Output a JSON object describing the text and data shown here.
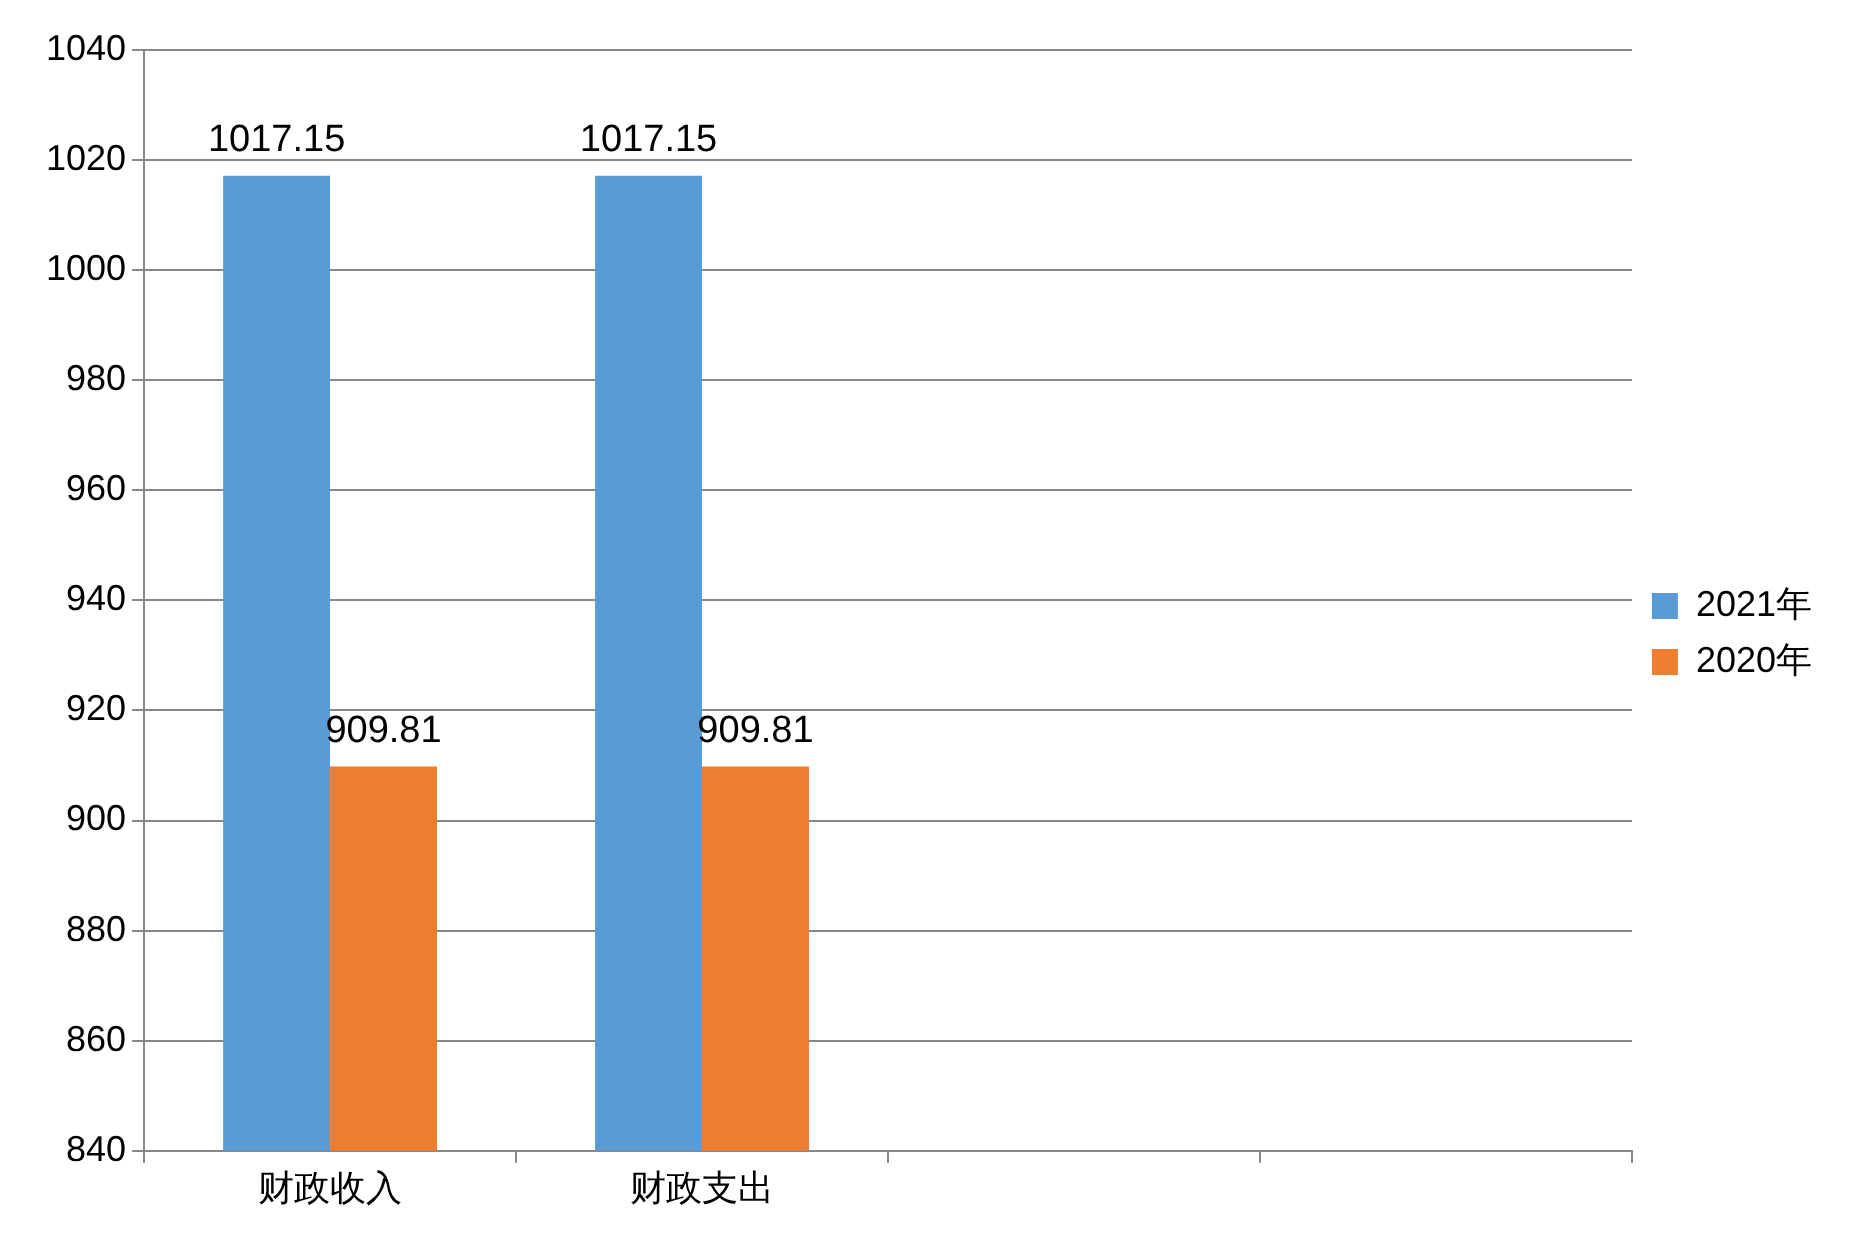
{
  "chart_data": {
    "type": "bar",
    "categories": [
      "财政收入",
      "财政支出",
      null,
      null
    ],
    "series": [
      {
        "name": "2021年",
        "color": "#5b9bd5",
        "values": [
          1017.15,
          1017.15,
          null,
          null
        ]
      },
      {
        "name": "2020年",
        "color": "#ed7d31",
        "values": [
          909.81,
          909.81,
          null,
          null
        ]
      }
    ],
    "ylim": [
      840,
      1040
    ],
    "yticks": [
      840,
      860,
      880,
      900,
      920,
      940,
      960,
      980,
      1000,
      1020,
      1040
    ],
    "grid": "y",
    "legend": "right",
    "data_labels": true
  }
}
